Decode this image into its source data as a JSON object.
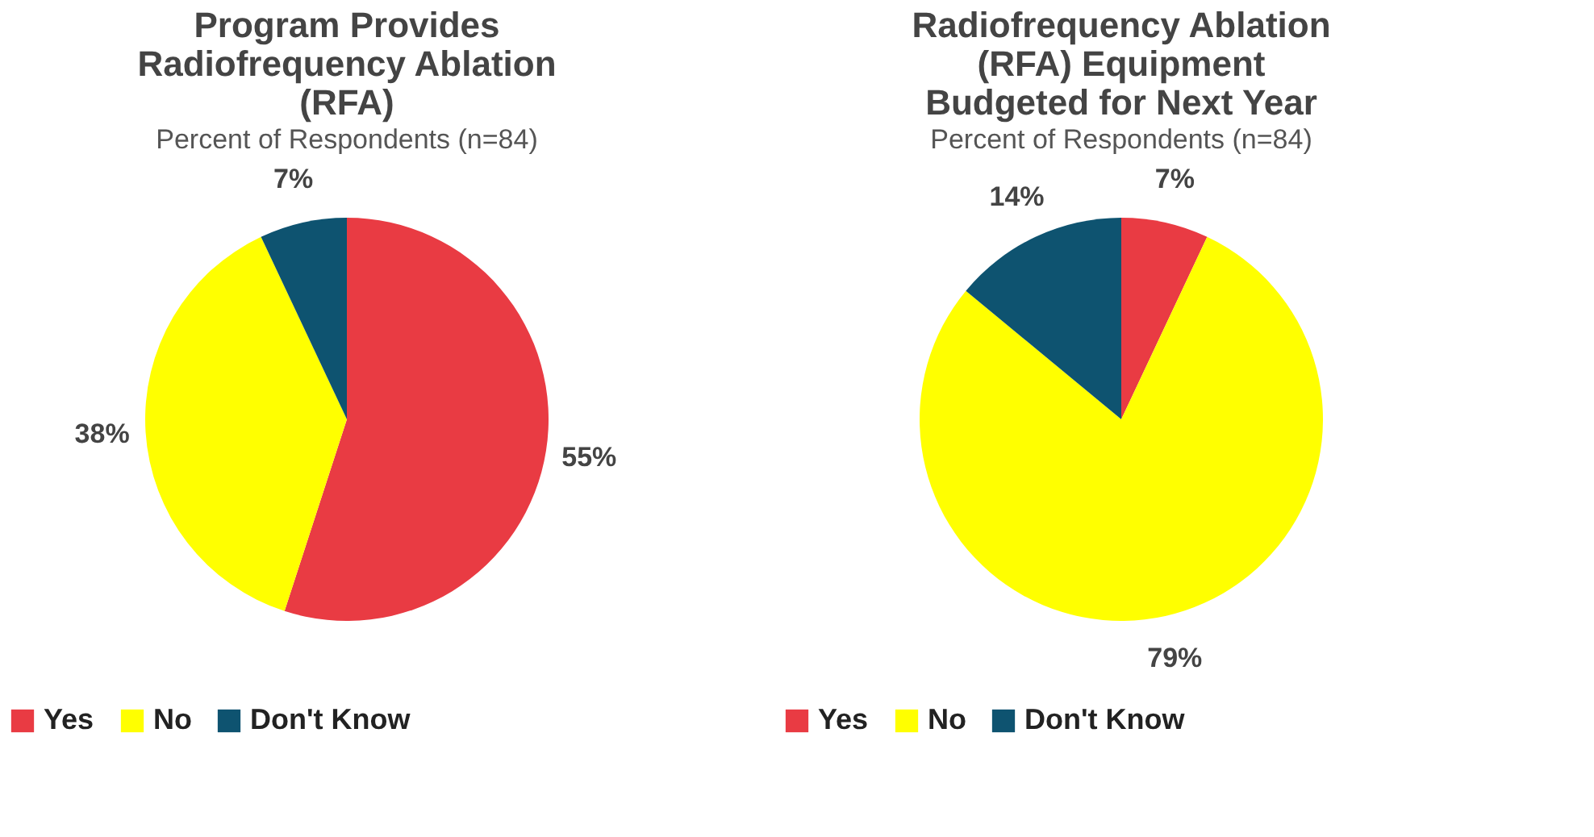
{
  "chart_data": [
    {
      "type": "pie",
      "title": "Program Provides\nRadiofrequency Ablation\n(RFA)",
      "subtitle": "Percent of Respondents (n=84)",
      "categories": [
        "Yes",
        "No",
        "Don't Know"
      ],
      "values": [
        55,
        38,
        7
      ],
      "colors": [
        "#e93b43",
        "#ffff00",
        "#0e5370"
      ],
      "value_labels": [
        "55%",
        "38%",
        "7%"
      ],
      "legend": "bottom"
    },
    {
      "type": "pie",
      "title": "Radiofrequency Ablation\n(RFA) Equipment\nBudgeted for Next Year",
      "subtitle": "Percent of Respondents (n=84)",
      "categories": [
        "Yes",
        "No",
        "Don't Know"
      ],
      "values": [
        7,
        79,
        14
      ],
      "colors": [
        "#e93b43",
        "#ffff00",
        "#0e5370"
      ],
      "value_labels": [
        "7%",
        "79%",
        "14%"
      ],
      "legend": "bottom"
    }
  ]
}
